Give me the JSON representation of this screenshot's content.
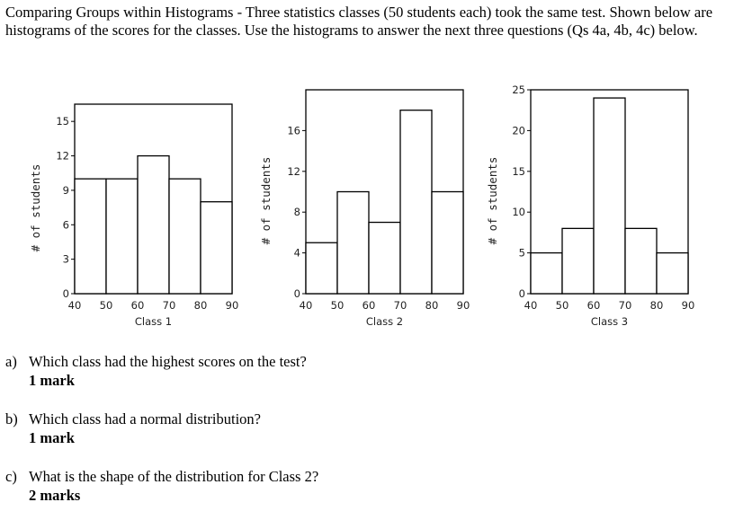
{
  "intro": "Comparing Groups within Histograms - Three statistics classes (50 students each) took the same test. Shown below are histograms of the scores for the classes. Use the histograms to answer the next three questions (Qs 4a, 4b, 4c) below.",
  "chart_data": [
    {
      "type": "bar",
      "title": "",
      "xlabel": "Class 1",
      "ylabel": "# of students",
      "bin_edges": [
        40,
        50,
        60,
        70,
        80,
        90
      ],
      "values": [
        10,
        10,
        12,
        10,
        8
      ],
      "yticks": [
        0,
        3,
        6,
        9,
        12,
        15
      ],
      "ylim": [
        0,
        16.5
      ],
      "xticks": [
        40,
        50,
        60,
        70,
        80,
        90
      ]
    },
    {
      "type": "bar",
      "title": "",
      "xlabel": "Class 2",
      "ylabel": "# of students",
      "bin_edges": [
        40,
        50,
        60,
        70,
        80,
        90
      ],
      "values": [
        5,
        10,
        7,
        18,
        10
      ],
      "yticks": [
        0,
        4,
        8,
        12,
        16
      ],
      "ylim": [
        0,
        20
      ],
      "xticks": [
        40,
        50,
        60,
        70,
        80,
        90
      ]
    },
    {
      "type": "bar",
      "title": "",
      "xlabel": "Class 3",
      "ylabel": "# of students",
      "bin_edges": [
        40,
        50,
        60,
        70,
        80,
        90
      ],
      "values": [
        5,
        8,
        24,
        8,
        5
      ],
      "yticks": [
        0,
        5,
        10,
        15,
        20,
        25
      ],
      "ylim": [
        0,
        25
      ],
      "xticks": [
        40,
        50,
        60,
        70,
        80,
        90
      ]
    }
  ],
  "questions": [
    {
      "letter": "a)",
      "text": "Which class had the highest scores on the test?",
      "marks": "1 mark"
    },
    {
      "letter": "b)",
      "text": "Which class had a normal distribution?",
      "marks": "1 mark"
    },
    {
      "letter": "c)",
      "text": "What is the shape of the distribution for Class 2?",
      "marks": "2 marks"
    }
  ]
}
